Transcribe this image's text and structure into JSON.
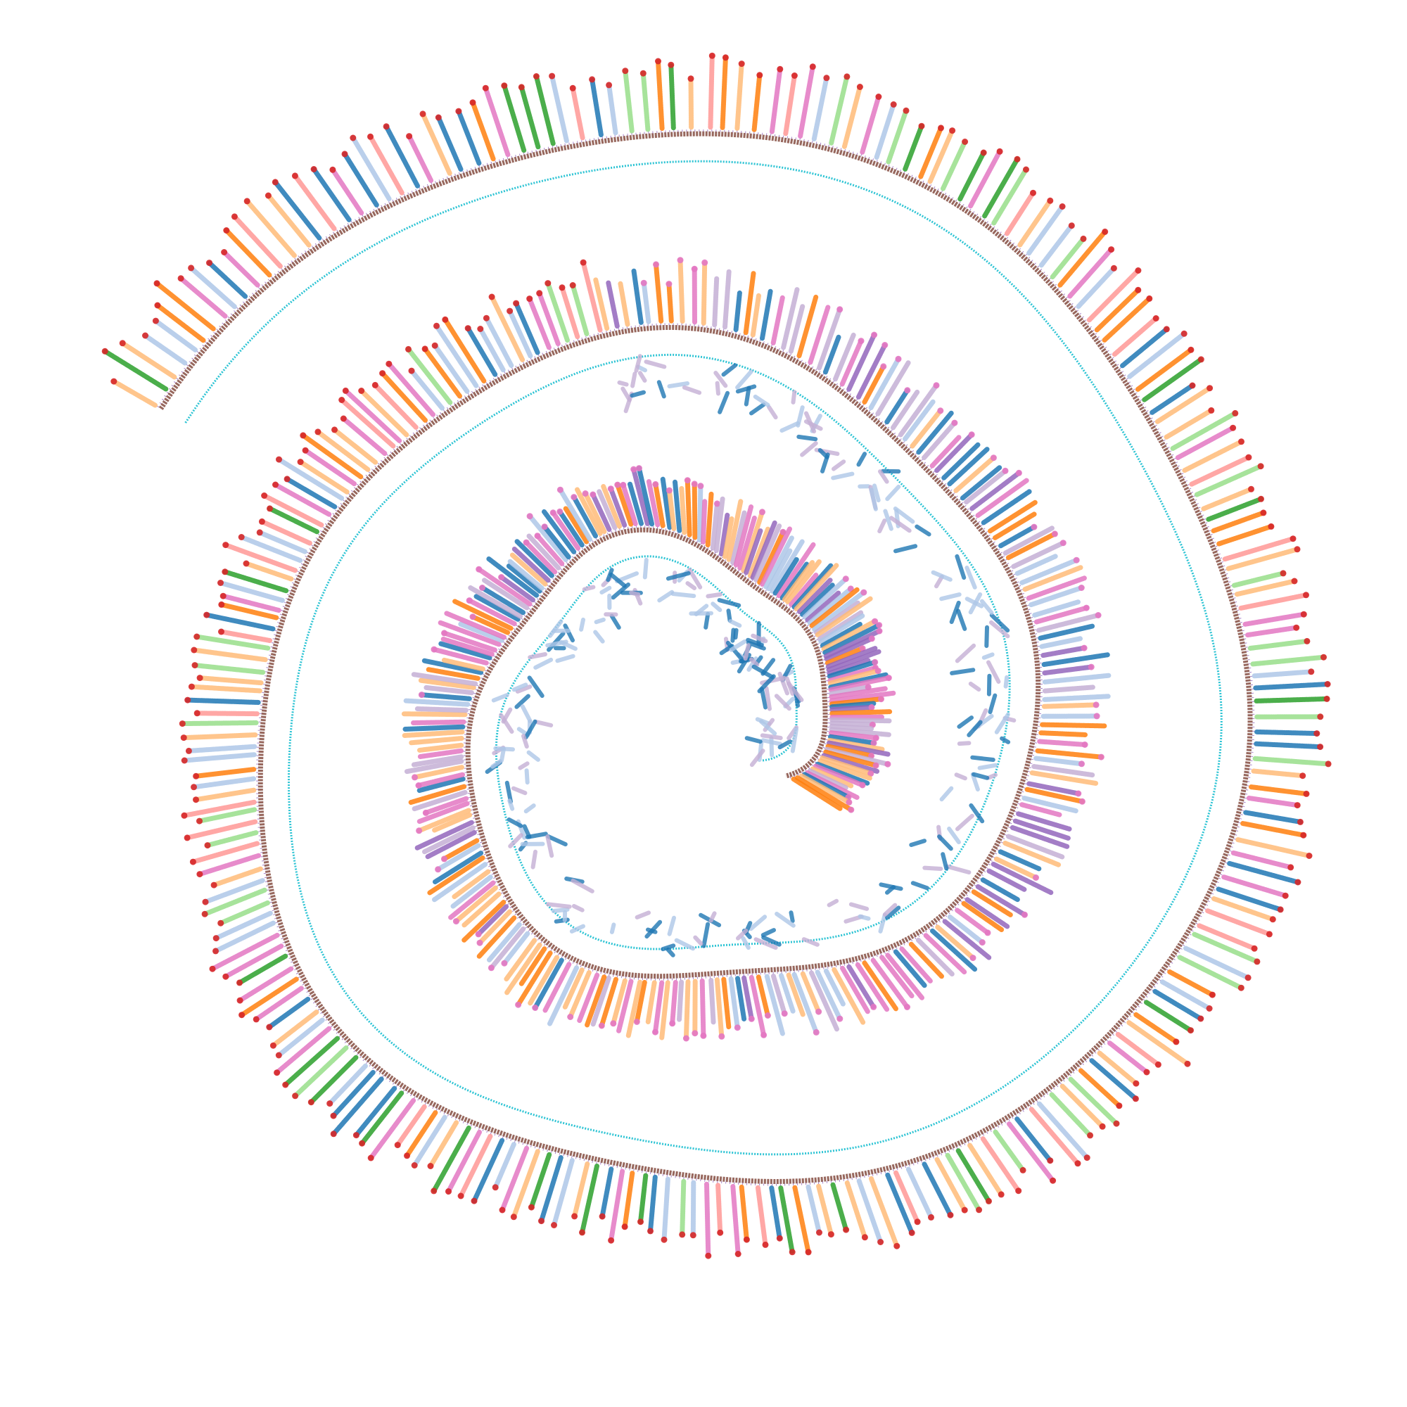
{
  "image": {
    "description_kind": "spatial transcriptomics cell-type map (Swiss-roll intestine section)",
    "background": "#ffffff"
  },
  "chart_data": {
    "type": "scatter",
    "title": "",
    "xlabel": "",
    "ylabel": "",
    "grid": false,
    "legend": "none",
    "series_palette": [
      "#1f77b4",
      "#ff7f0e",
      "#2ca02c",
      "#d62728",
      "#9467bd",
      "#8c564b",
      "#e377c2",
      "#7f7f7f",
      "#bcbd22",
      "#17becf",
      "#aec7e8",
      "#ffbb78",
      "#98df8a",
      "#ff9896",
      "#c5b0d5",
      "#c49c94",
      "#f7b6d2",
      "#dbdb8d",
      "#9edae5"
    ],
    "layers": {
      "lumen_edge_color": "#17becf",
      "muscularis_color": "#8c564b",
      "submucosa_color": "#9467bd",
      "villus_tip_color": "#d62728",
      "outer_villus_colors": [
        "#2ca02c",
        "#98df8a",
        "#ff9896",
        "#e377c2",
        "#ffbb78",
        "#aec7e8",
        "#1f77b4",
        "#ff7f0e"
      ],
      "inner_villus_colors": [
        "#1f77b4",
        "#aec7e8",
        "#c5b0d5",
        "#ff7f0e",
        "#e377c2",
        "#9467bd",
        "#ffbb78"
      ]
    }
  }
}
